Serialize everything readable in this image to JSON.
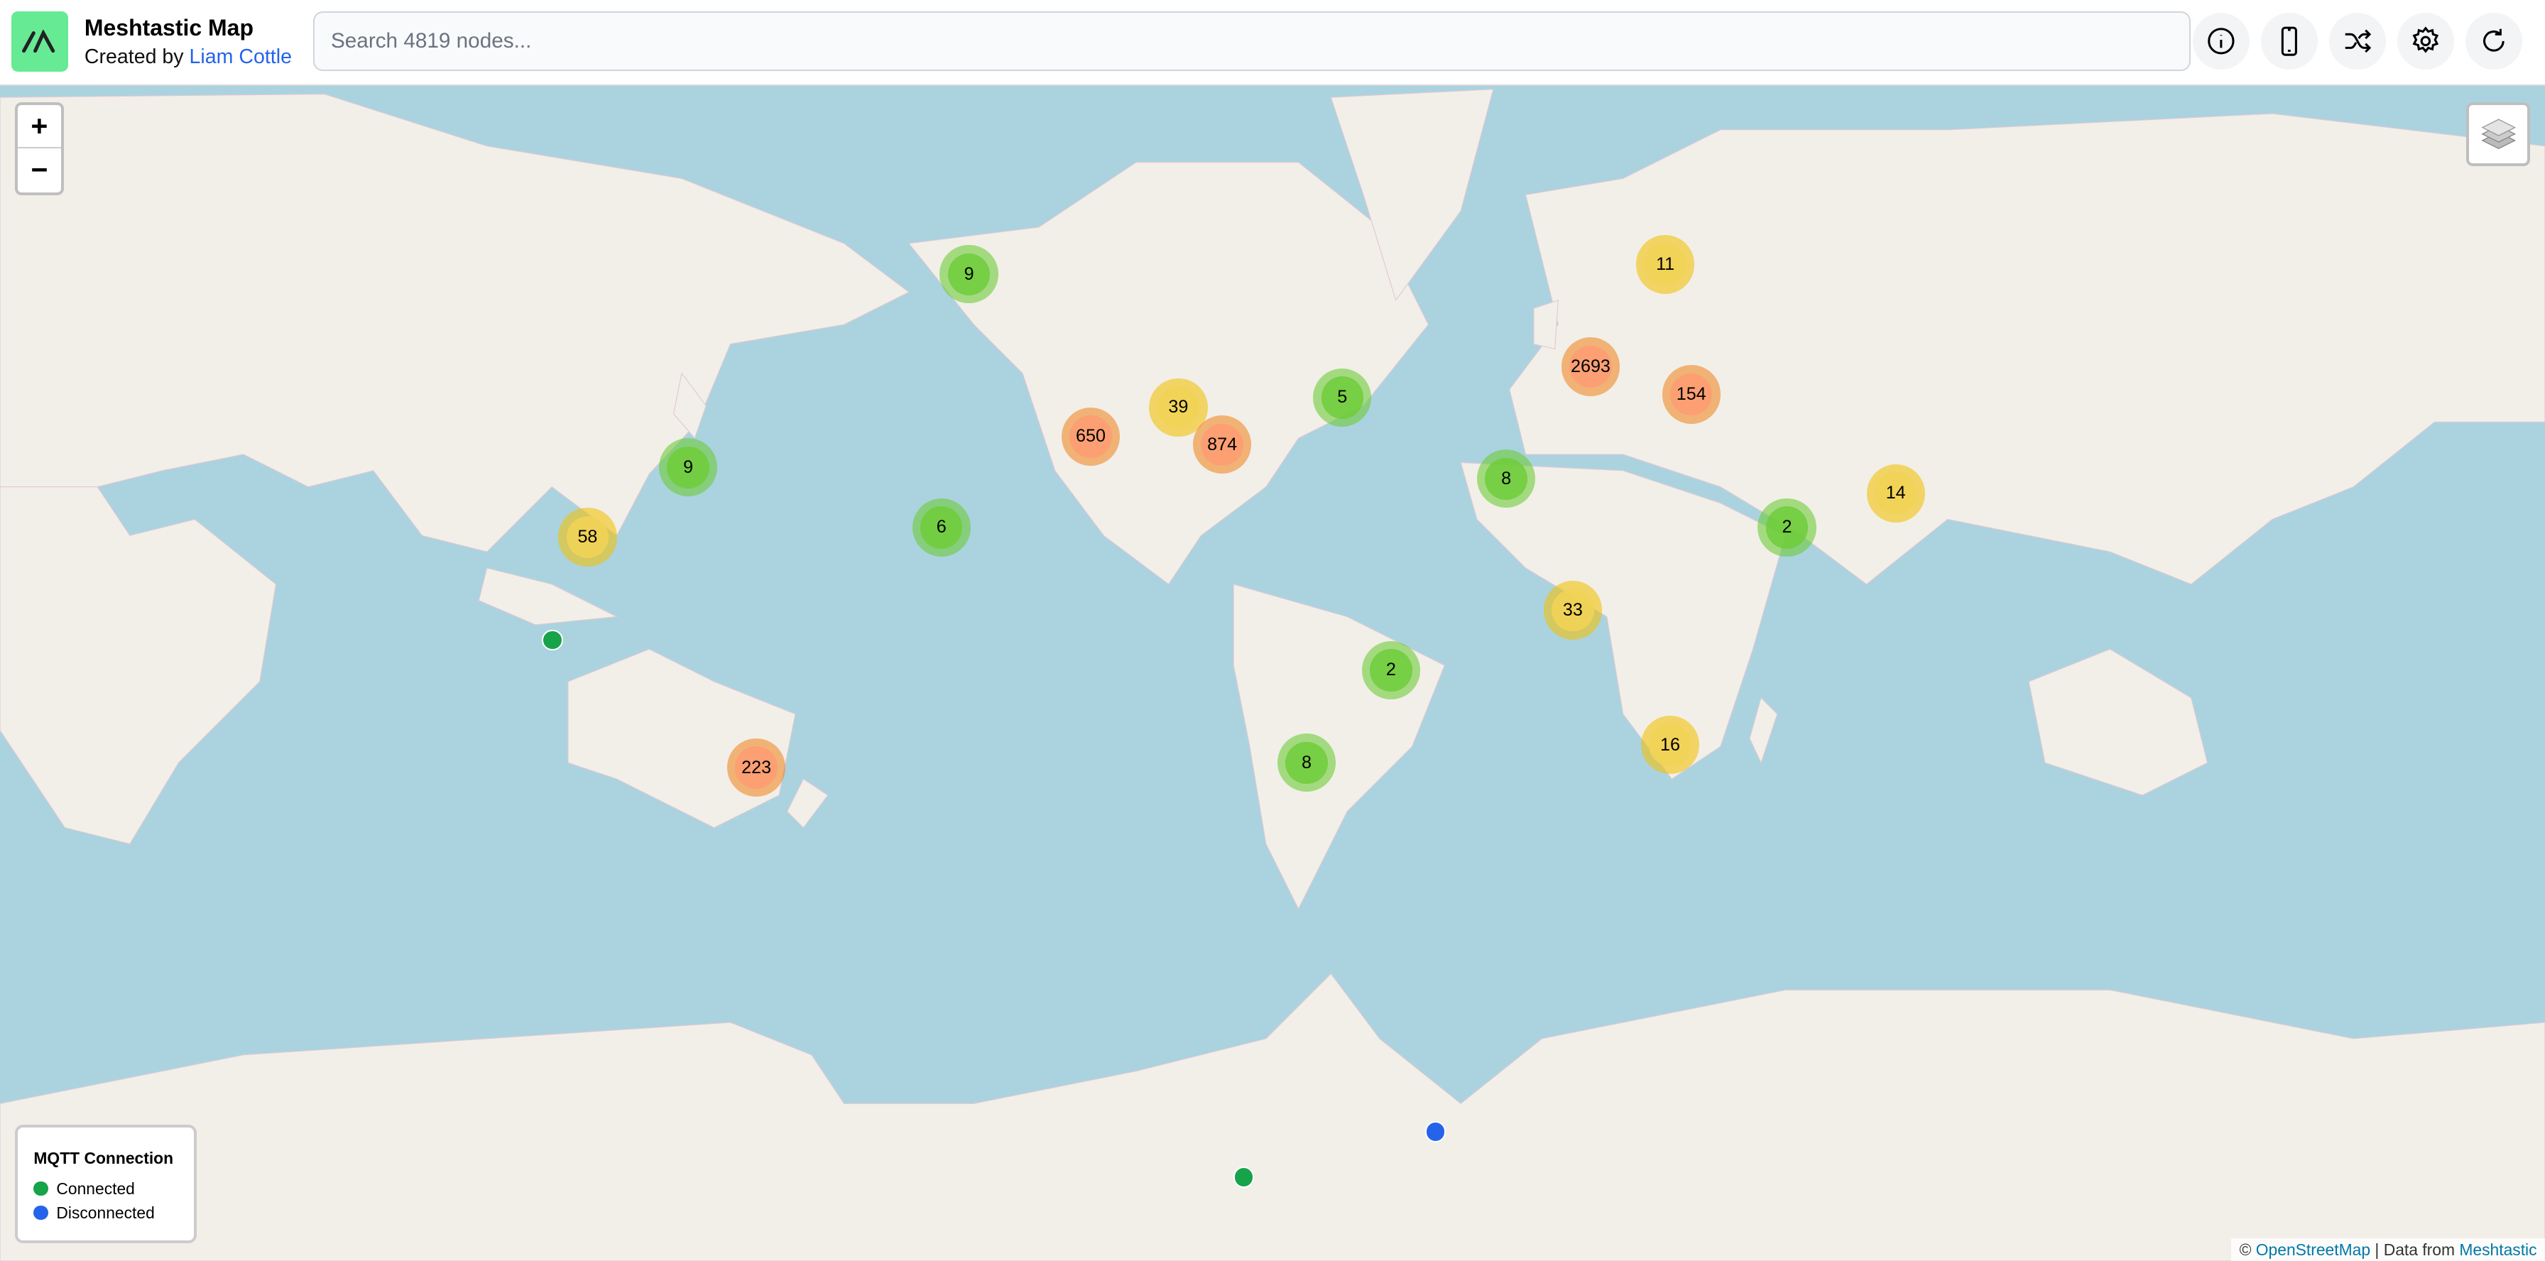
{
  "header": {
    "title": "Meshtastic Map",
    "created_by": "Created by",
    "author": "Liam Cottle",
    "search_placeholder": "Search 4819 nodes...",
    "buttons": [
      "info-icon",
      "phone-icon",
      "shuffle-icon",
      "gear-icon",
      "refresh-icon"
    ]
  },
  "map": {
    "zoom_in": "+",
    "zoom_out": "−",
    "colors": {
      "water": "#aad3df",
      "land": "#f2efe9",
      "cluster_small": "#6ecc39",
      "cluster_medium": "#f0c20c",
      "cluster_large": "#f18017"
    },
    "clusters": [
      "9",
      "11",
      "2693",
      "154",
      "5",
      "39",
      "650",
      "874",
      "9",
      "8",
      "14",
      "58",
      "6",
      "2",
      "33",
      "2",
      "16",
      "223",
      "8"
    ],
    "nodes": [
      "connected",
      "connected",
      "disconnected"
    ]
  },
  "legend": {
    "title": "MQTT Connection",
    "items": [
      {
        "label": "Connected",
        "color": "#16a34a"
      },
      {
        "label": "Disconnected",
        "color": "#2563eb"
      }
    ]
  },
  "attribution": {
    "copyright": "©",
    "osm": "OpenStreetMap",
    "separator": "|",
    "data_from": "Data from",
    "meshtastic": "Meshtastic"
  }
}
